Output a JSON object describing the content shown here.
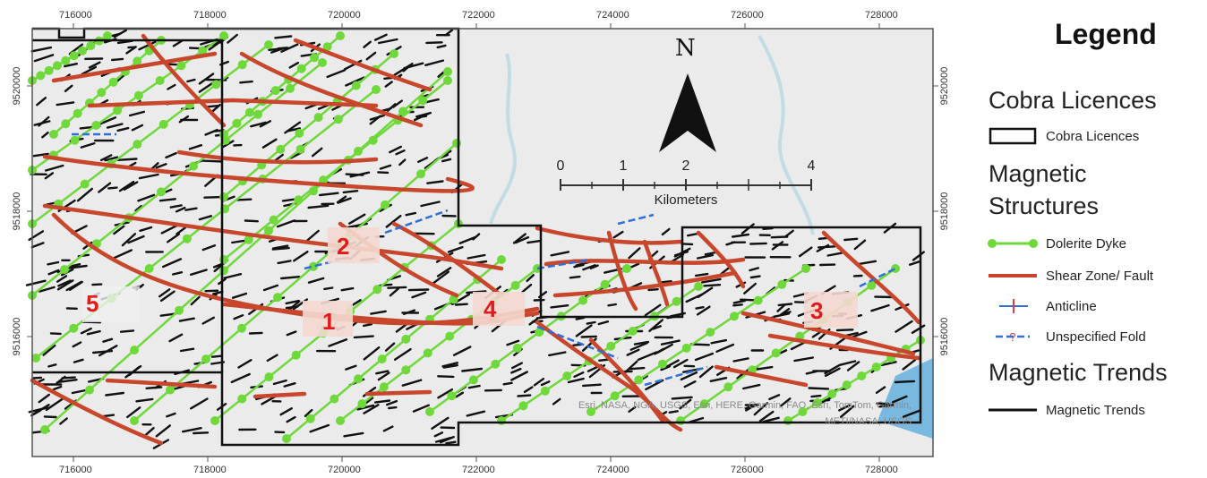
{
  "map": {
    "x_ticks": [
      "716000",
      "718000",
      "720000",
      "722000",
      "724000",
      "726000",
      "728000"
    ],
    "y_ticks": [
      "9520000",
      "9518000",
      "9516000"
    ],
    "north_label": "N",
    "scale_labels": [
      "0",
      "1",
      "2",
      "4"
    ],
    "scale_unit": "Kilometers",
    "attribution_line1": "Esri, NASA, NGA, USGS, Esri, HERE, Garmin, FAO, Esri, TomTom, Garmin,",
    "attribution_line2": "METI/NASA, USGS",
    "target_labels": [
      "1",
      "2",
      "3",
      "4",
      "5"
    ],
    "colors": {
      "dyke": "#6fd83a",
      "fault": "#c8472c",
      "anticline": "#2f6fd6",
      "fold": "#2f6fd6",
      "trend": "#111111",
      "licence": "#111111",
      "target_label": "#e11b1b"
    }
  },
  "legend": {
    "title": "Legend",
    "licences_header": "Cobra Licences",
    "licences_item": "Cobra Licences",
    "structures_header_line1": "Magnetic",
    "structures_header_line2": "Structures",
    "dyke_label": "Dolerite Dyke",
    "fault_label": "Shear Zone/ Fault",
    "anticline_label": "Anticline",
    "fold_label": "Unspecified Fold",
    "trends_header": "Magnetic Trends",
    "trends_label": "Magnetic Trends"
  }
}
